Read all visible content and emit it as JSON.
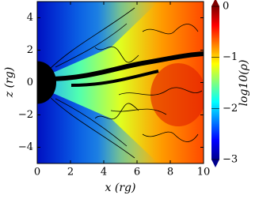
{
  "chart_data": {
    "type": "heatmap",
    "xlabel": "x (rg)",
    "ylabel": "z (rg)",
    "colorbar_label": "log10(ρ)",
    "xlim": [
      0,
      10
    ],
    "xticks": [
      0,
      2,
      4,
      6,
      8,
      10
    ],
    "ylim": [
      -5,
      5
    ],
    "yticks": [
      {
        "value": -4,
        "label": "−4"
      },
      {
        "value": -2,
        "label": "−2"
      },
      0,
      2,
      4
    ],
    "clim": [
      -3,
      0
    ],
    "cticks": [
      0,
      {
        "value": -1,
        "label": "−1"
      },
      {
        "value": -2,
        "label": "−2"
      },
      {
        "value": -3,
        "label": "−3"
      }
    ],
    "colormap": "jet"
  }
}
